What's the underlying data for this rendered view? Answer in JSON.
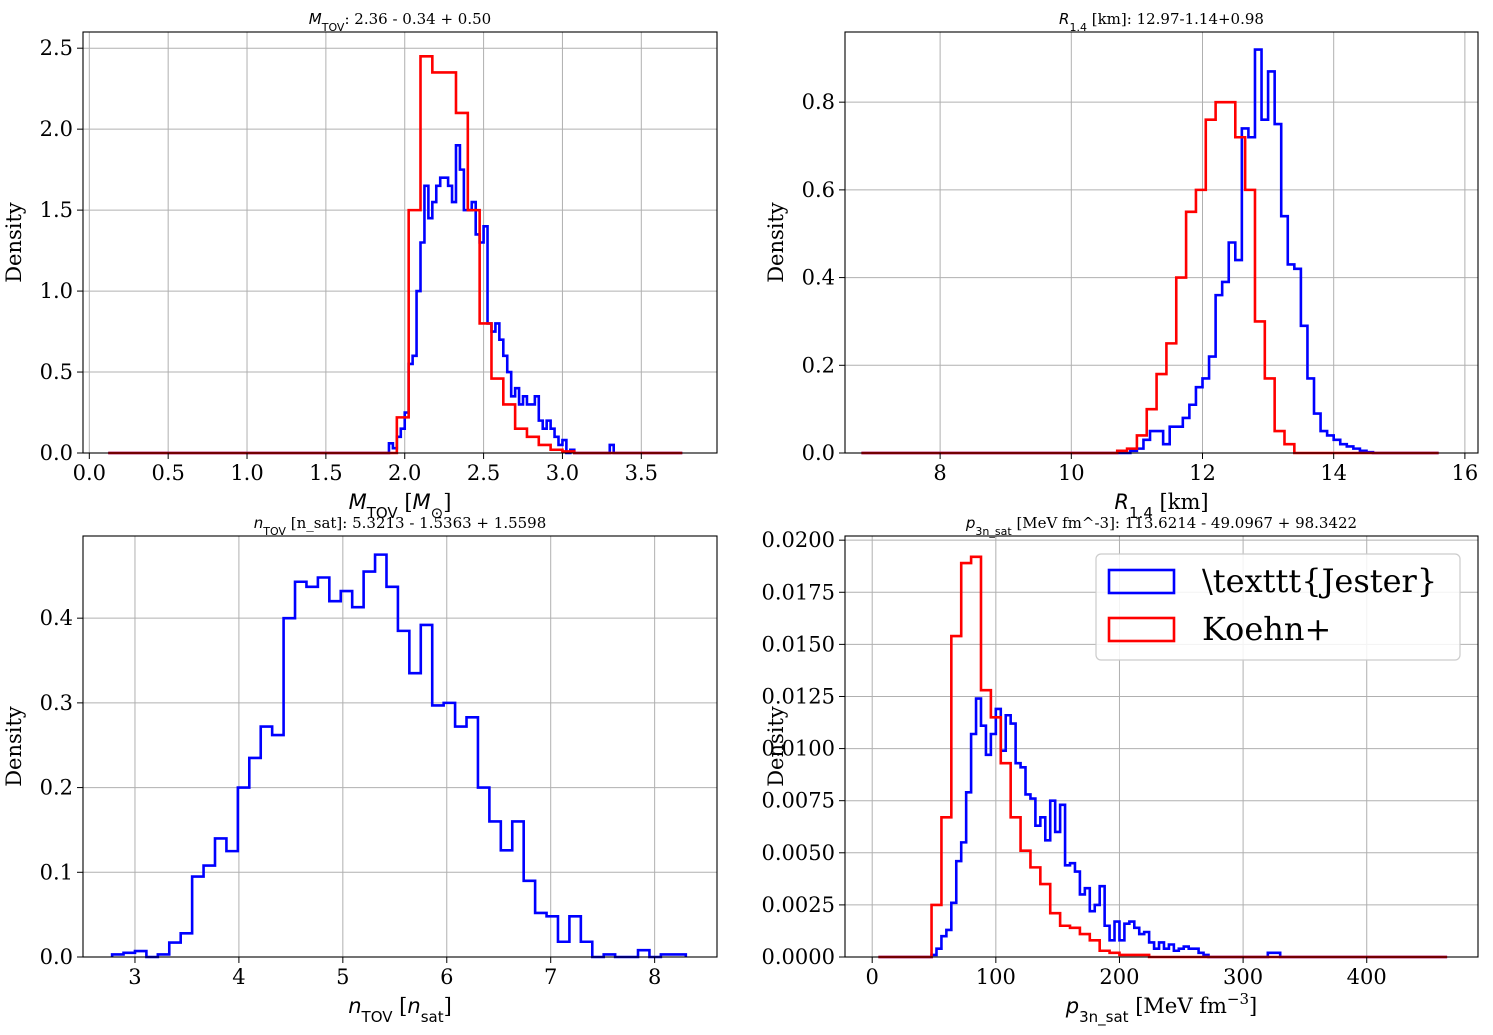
{
  "colors": {
    "jester": "#0000ff",
    "koehn": "#ff0000",
    "grid": "#b0b0b0"
  },
  "legend": {
    "entries": [
      "\\texttt{Jester}",
      "Koehn+"
    ],
    "placement": "upper right"
  },
  "chart_data": [
    {
      "type": "histogram",
      "title": {
        "sym": "M",
        "sub": "TOV",
        "rest": ": 2.36 - 0.34 + 0.50"
      },
      "xlabel": {
        "sym": "M",
        "sub": "TOV",
        "pre_unit": " [",
        "unit_sym": "M",
        "unit_sub": "⊙",
        "post": "]"
      },
      "ylabel": "Density",
      "xlim": [
        -0.04,
        3.98
      ],
      "ylim": [
        0,
        2.6
      ],
      "xticks": [
        0.0,
        0.5,
        1.0,
        1.5,
        2.0,
        2.5,
        3.0,
        3.5
      ],
      "xticklabels": [
        "0.0",
        "0.5",
        "1.0",
        "1.5",
        "2.0",
        "2.5",
        "3.0",
        "3.5"
      ],
      "yticks": [
        0.0,
        0.5,
        1.0,
        1.5,
        2.0,
        2.5
      ],
      "yticklabels": [
        "0.0",
        "0.5",
        "1.0",
        "1.5",
        "2.0",
        "2.5"
      ],
      "grid": true,
      "series": [
        {
          "key": "jester",
          "edges": [
            0.12,
            1.9,
            1.925,
            1.95,
            1.975,
            2.0,
            2.025,
            2.05,
            2.075,
            2.1,
            2.125,
            2.15,
            2.175,
            2.2,
            2.225,
            2.25,
            2.275,
            2.3,
            2.325,
            2.35,
            2.375,
            2.4,
            2.425,
            2.45,
            2.475,
            2.5,
            2.525,
            2.55,
            2.575,
            2.6,
            2.625,
            2.65,
            2.675,
            2.7,
            2.725,
            2.75,
            2.775,
            2.8,
            2.825,
            2.85,
            2.875,
            2.9,
            2.925,
            2.95,
            2.975,
            3.0,
            3.025,
            3.05,
            3.075,
            3.1,
            3.3,
            3.325,
            3.35,
            3.76
          ],
          "values": [
            0,
            0.06,
            0.03,
            0.1,
            0.15,
            0.25,
            0.55,
            0.6,
            1.0,
            1.3,
            1.65,
            1.45,
            1.55,
            1.65,
            1.7,
            1.7,
            1.65,
            1.55,
            1.9,
            1.75,
            1.5,
            1.5,
            1.55,
            1.35,
            1.3,
            1.4,
            0.8,
            0.75,
            0.8,
            0.7,
            0.6,
            0.5,
            0.35,
            0.4,
            0.3,
            0.35,
            0.3,
            0.3,
            0.35,
            0.2,
            0.15,
            0.2,
            0.15,
            0.1,
            0.05,
            0.08,
            0.0,
            0.02,
            0.0,
            0.0,
            0.05,
            0.0,
            0
          ]
        },
        {
          "key": "koehn",
          "edges": [
            0.12,
            1.95,
            2.025,
            2.1,
            2.175,
            2.25,
            2.325,
            2.4,
            2.475,
            2.55,
            2.625,
            2.7,
            2.775,
            2.85,
            2.925,
            3.0,
            3.075,
            3.76
          ],
          "values": [
            0,
            0.22,
            1.5,
            2.45,
            2.35,
            2.35,
            2.1,
            1.5,
            0.8,
            0.46,
            0.3,
            0.15,
            0.1,
            0.05,
            0.02,
            0.01,
            0
          ]
        }
      ]
    },
    {
      "type": "histogram",
      "title": {
        "sym": "R",
        "sub": "1.4",
        "rest": " [km]: 12.97-1.14+0.98"
      },
      "xlabel": {
        "sym": "R",
        "sub": "1.4",
        "pre_unit": " [km]",
        "unit_sym": "",
        "unit_sub": "",
        "post": ""
      },
      "ylabel": "Density",
      "xlim": [
        6.55,
        16.2
      ],
      "ylim": [
        0,
        0.96
      ],
      "xticks": [
        8,
        10,
        12,
        14,
        16
      ],
      "xticklabels": [
        "8",
        "10",
        "12",
        "14",
        "16"
      ],
      "yticks": [
        0.0,
        0.2,
        0.4,
        0.6,
        0.8
      ],
      "yticklabels": [
        "0.0",
        "0.2",
        "0.4",
        "0.6",
        "0.8"
      ],
      "grid": true,
      "series": [
        {
          "key": "jester",
          "edges": [
            6.8,
            10.9,
            11.0,
            11.1,
            11.2,
            11.3,
            11.4,
            11.5,
            11.6,
            11.7,
            11.8,
            11.9,
            12.0,
            12.1,
            12.2,
            12.3,
            12.4,
            12.5,
            12.6,
            12.7,
            12.8,
            12.9,
            13.0,
            13.1,
            13.2,
            13.3,
            13.4,
            13.5,
            13.6,
            13.7,
            13.8,
            13.9,
            14.0,
            14.1,
            14.2,
            14.3,
            14.4,
            14.5,
            14.6,
            14.7,
            15.6
          ],
          "values": [
            0,
            0.005,
            0.01,
            0.03,
            0.05,
            0.05,
            0.02,
            0.06,
            0.06,
            0.08,
            0.11,
            0.15,
            0.17,
            0.22,
            0.36,
            0.39,
            0.48,
            0.44,
            0.74,
            0.72,
            0.92,
            0.76,
            0.87,
            0.75,
            0.54,
            0.43,
            0.42,
            0.29,
            0.17,
            0.09,
            0.05,
            0.04,
            0.03,
            0.02,
            0.015,
            0.01,
            0.005,
            0.002,
            0.0,
            0
          ]
        },
        {
          "key": "koehn",
          "edges": [
            6.8,
            10.7,
            10.85,
            11.0,
            11.15,
            11.3,
            11.45,
            11.6,
            11.75,
            11.9,
            12.05,
            12.2,
            12.35,
            12.5,
            12.65,
            12.8,
            12.95,
            13.1,
            13.25,
            13.4,
            15.6
          ],
          "values": [
            0,
            0.005,
            0.01,
            0.04,
            0.1,
            0.18,
            0.25,
            0.4,
            0.55,
            0.6,
            0.76,
            0.8,
            0.8,
            0.72,
            0.6,
            0.3,
            0.17,
            0.05,
            0.02,
            0.0
          ]
        }
      ]
    },
    {
      "type": "histogram",
      "title": {
        "sym": "n",
        "sub": "TOV",
        "rest": " [n_sat]: 5.3213 - 1.5363 + 1.5598"
      },
      "xlabel": {
        "sym": "n",
        "sub": "TOV",
        "pre_unit": " [",
        "unit_sym": "n",
        "unit_sub": "sat",
        "post": "]"
      },
      "ylabel": "Density",
      "xlim": [
        2.5,
        8.6
      ],
      "ylim": [
        0,
        0.497
      ],
      "xticks": [
        3,
        4,
        5,
        6,
        7,
        8
      ],
      "xticklabels": [
        "3",
        "4",
        "5",
        "6",
        "7",
        "8"
      ],
      "yticks": [
        0.0,
        0.1,
        0.2,
        0.3,
        0.4
      ],
      "yticklabels": [
        "0.0",
        "0.1",
        "0.2",
        "0.3",
        "0.4"
      ],
      "grid": true,
      "series": [
        {
          "key": "jester",
          "edges": [
            2.78,
            2.89,
            3.0,
            3.11,
            3.22,
            3.33,
            3.44,
            3.55,
            3.66,
            3.77,
            3.88,
            3.99,
            4.1,
            4.21,
            4.32,
            4.43,
            4.54,
            4.65,
            4.76,
            4.87,
            4.98,
            5.09,
            5.2,
            5.31,
            5.42,
            5.53,
            5.64,
            5.75,
            5.86,
            5.97,
            6.08,
            6.19,
            6.3,
            6.41,
            6.52,
            6.63,
            6.74,
            6.85,
            6.96,
            7.07,
            7.18,
            7.29,
            7.4,
            7.51,
            7.62,
            7.73,
            7.84,
            7.95,
            8.06,
            8.17,
            8.3
          ],
          "values": [
            0.003,
            0.005,
            0.007,
            0.0,
            0.003,
            0.017,
            0.028,
            0.095,
            0.108,
            0.14,
            0.125,
            0.2,
            0.235,
            0.272,
            0.262,
            0.4,
            0.443,
            0.437,
            0.448,
            0.42,
            0.432,
            0.413,
            0.455,
            0.475,
            0.437,
            0.385,
            0.335,
            0.392,
            0.297,
            0.3,
            0.272,
            0.283,
            0.2,
            0.16,
            0.126,
            0.16,
            0.09,
            0.052,
            0.048,
            0.018,
            0.048,
            0.018,
            0.0,
            0.003,
            0.0,
            0.0,
            0.008,
            0.0,
            0.003,
            0.003
          ]
        }
      ]
    },
    {
      "type": "histogram",
      "title": {
        "sym": "p",
        "sub": "3n_sat",
        "rest": " [MeV fm^-3]: 113.6214 - 49.0967 + 98.3422"
      },
      "xlabel": {
        "sym": "p",
        "sub": "3n_sat",
        "pre_unit": " [MeV fm",
        "unit_sym": "",
        "unit_sub": "",
        "post": "]",
        "sup": "−3"
      },
      "ylabel": "Density",
      "xlim": [
        -22,
        490
      ],
      "ylim": [
        0,
        0.0202
      ],
      "xticks": [
        0,
        100,
        200,
        300,
        400
      ],
      "xticklabels": [
        "0",
        "100",
        "200",
        "300",
        "400"
      ],
      "yticks": [
        0.0,
        0.0025,
        0.005,
        0.0075,
        0.01,
        0.0125,
        0.015,
        0.0175,
        0.02
      ],
      "yticklabels": [
        "0.0000",
        "0.0025",
        "0.0050",
        "0.0075",
        "0.0100",
        "0.0125",
        "0.0150",
        "0.0175",
        "0.0200"
      ],
      "grid": true,
      "series": [
        {
          "key": "jester",
          "edges": [
            5,
            48,
            52,
            56,
            60,
            64,
            68,
            72,
            76,
            80,
            84,
            88,
            92,
            96,
            100,
            104,
            108,
            112,
            116,
            120,
            124,
            128,
            132,
            136,
            140,
            144,
            148,
            152,
            156,
            160,
            164,
            168,
            172,
            176,
            180,
            184,
            188,
            192,
            196,
            200,
            204,
            208,
            212,
            216,
            220,
            224,
            228,
            232,
            236,
            240,
            244,
            248,
            252,
            256,
            260,
            264,
            268,
            272,
            320,
            330,
            465
          ],
          "values": [
            0,
            0.0001,
            0.0004,
            0.001,
            0.0013,
            0.0026,
            0.0046,
            0.0055,
            0.0079,
            0.0107,
            0.0124,
            0.0111,
            0.0097,
            0.0107,
            0.0119,
            0.0099,
            0.0116,
            0.0112,
            0.0093,
            0.0091,
            0.0078,
            0.0076,
            0.0063,
            0.0067,
            0.0056,
            0.0075,
            0.006,
            0.0073,
            0.0044,
            0.0045,
            0.0041,
            0.003,
            0.0033,
            0.0022,
            0.0025,
            0.0034,
            0.0015,
            0.0008,
            0.0017,
            0.0008,
            0.0016,
            0.0017,
            0.0014,
            0.0011,
            0.0012,
            0.0007,
            0.0004,
            0.0007,
            0.0004,
            0.0006,
            0.0003,
            0.0004,
            0.0005,
            0.0004,
            0.0004,
            0.0002,
            0.0001,
            0.0,
            0.0002,
            0
          ]
        },
        {
          "key": "koehn",
          "edges": [
            5,
            48,
            56,
            64,
            72,
            80,
            88,
            96,
            104,
            112,
            120,
            128,
            136,
            144,
            152,
            160,
            168,
            176,
            184,
            192,
            200,
            208,
            216,
            224,
            232,
            240,
            248,
            465
          ],
          "values": [
            0,
            0.0025,
            0.0067,
            0.0154,
            0.0189,
            0.0192,
            0.0128,
            0.0115,
            0.0093,
            0.0067,
            0.0051,
            0.0043,
            0.0035,
            0.0021,
            0.0015,
            0.0014,
            0.0011,
            0.0008,
            0.0003,
            0.0002,
            0.0001,
            0.0001,
            0.0001,
            0.0,
            0.0,
            0.0,
            0
          ]
        }
      ]
    }
  ]
}
